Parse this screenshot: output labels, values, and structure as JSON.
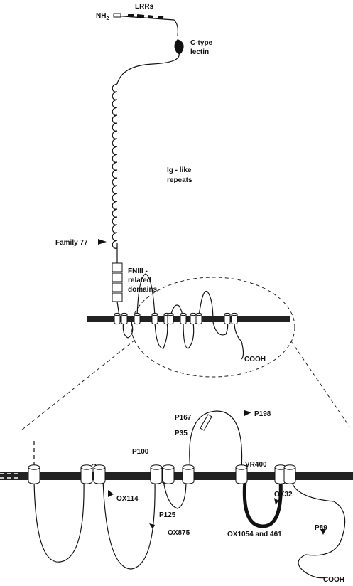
{
  "overview": {
    "n_terminus": "NH",
    "n_terminus_sub": "2",
    "lrrs": "LRRs",
    "lectin": [
      "C-type",
      "lectin"
    ],
    "ig": [
      "Ig - like",
      "repeats"
    ],
    "family": "Family 77",
    "fniii": [
      "FNIII -",
      "related",
      "domains"
    ],
    "cooh": "COOH"
  },
  "detail": {
    "p167": "P167",
    "p35": "P35",
    "p198": "P198",
    "p100": "P100",
    "vr400": "VR400",
    "ox32": "OX32",
    "ox114": "OX114",
    "star": "*",
    "p125": "P125",
    "ox875": "OX875",
    "ox1054": "OX1054 and 461",
    "p89": "P89",
    "cooh": "COOH"
  }
}
